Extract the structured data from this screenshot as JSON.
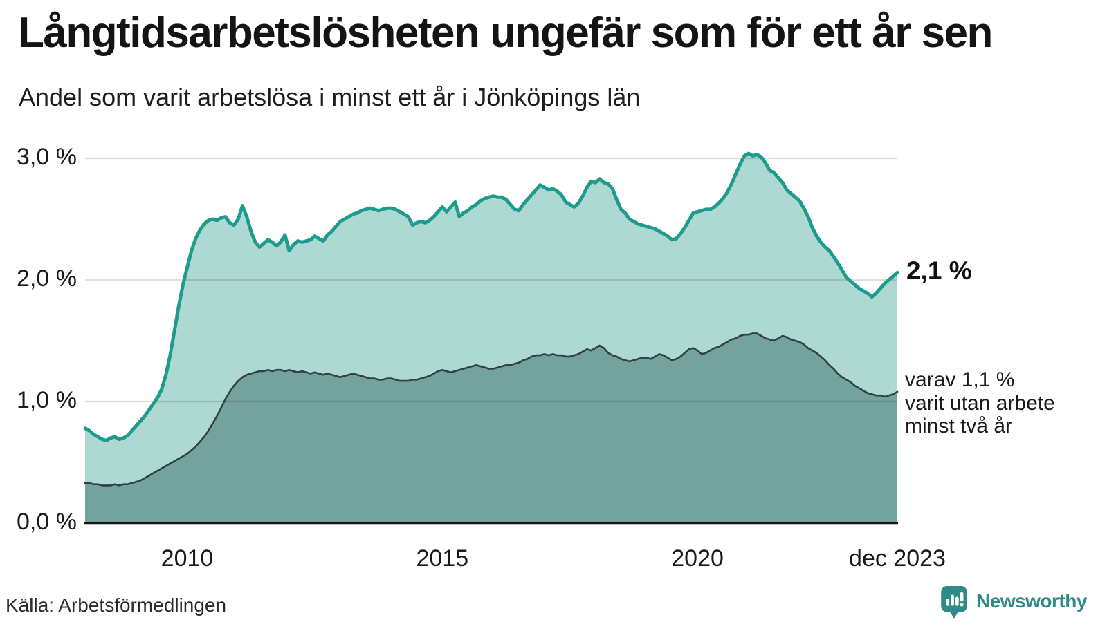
{
  "header": {
    "title": "Långtidsarbetslösheten ungefär som för ett år sen",
    "subtitle": "Andel som varit arbetslösa i minst ett år i Jönköpings län"
  },
  "chart_data": {
    "type": "area",
    "title": "Långtidsarbetslösheten ungefär som för ett år sen",
    "subtitle": "Andel som varit arbetslösa i minst ett år i Jönköpings län",
    "x_range": {
      "start_year": 2008,
      "start_month": 1,
      "end_year": 2023,
      "end_month": 12,
      "interval": "monthly"
    },
    "ylim": [
      0,
      3.3
    ],
    "grid": true,
    "grid_color": "rgba(0,0,0,0.12)",
    "axis_color": "#161616",
    "legend_position": "none",
    "end_label": "2,1 %",
    "annotation": [
      "varav 1,1 %",
      "varit utan arbete",
      "minst två år"
    ],
    "y_ticks": [
      {
        "v": 3.0,
        "label": "3,0 %"
      },
      {
        "v": 2.0,
        "label": "2,0 %"
      },
      {
        "v": 1.0,
        "label": "1,0 %"
      },
      {
        "v": 0.0,
        "label": "0,0 %"
      }
    ],
    "x_ticks": [
      {
        "t": 2010.0,
        "label": "2010"
      },
      {
        "t": 2015.0,
        "label": "2015"
      },
      {
        "t": 2020.0,
        "label": "2020"
      },
      {
        "t": 2023.9167,
        "label": "dec 2023"
      }
    ],
    "series": [
      {
        "name": "arbetslösa minst ett år",
        "color": "#1d9b8c",
        "fill": "#aed8d2",
        "end_value": 2.1,
        "values": [
          0.78,
          0.76,
          0.73,
          0.71,
          0.69,
          0.68,
          0.7,
          0.71,
          0.69,
          0.7,
          0.72,
          0.76,
          0.8,
          0.84,
          0.88,
          0.93,
          0.98,
          1.03,
          1.1,
          1.22,
          1.38,
          1.58,
          1.78,
          1.96,
          2.1,
          2.24,
          2.34,
          2.41,
          2.46,
          2.49,
          2.5,
          2.49,
          2.51,
          2.52,
          2.47,
          2.45,
          2.5,
          2.61,
          2.52,
          2.4,
          2.31,
          2.27,
          2.3,
          2.33,
          2.31,
          2.28,
          2.31,
          2.37,
          2.24,
          2.29,
          2.32,
          2.31,
          2.32,
          2.33,
          2.36,
          2.34,
          2.32,
          2.37,
          2.4,
          2.44,
          2.48,
          2.5,
          2.52,
          2.54,
          2.55,
          2.57,
          2.58,
          2.59,
          2.58,
          2.57,
          2.58,
          2.59,
          2.59,
          2.58,
          2.56,
          2.54,
          2.52,
          2.45,
          2.47,
          2.48,
          2.47,
          2.49,
          2.52,
          2.56,
          2.6,
          2.56,
          2.6,
          2.64,
          2.52,
          2.55,
          2.57,
          2.6,
          2.62,
          2.65,
          2.67,
          2.68,
          2.69,
          2.68,
          2.68,
          2.66,
          2.62,
          2.58,
          2.57,
          2.62,
          2.66,
          2.7,
          2.74,
          2.78,
          2.76,
          2.74,
          2.75,
          2.73,
          2.7,
          2.64,
          2.62,
          2.6,
          2.63,
          2.69,
          2.76,
          2.81,
          2.8,
          2.83,
          2.8,
          2.79,
          2.75,
          2.66,
          2.58,
          2.55,
          2.5,
          2.48,
          2.46,
          2.45,
          2.44,
          2.43,
          2.42,
          2.4,
          2.38,
          2.36,
          2.33,
          2.34,
          2.38,
          2.43,
          2.49,
          2.55,
          2.56,
          2.57,
          2.58,
          2.58,
          2.6,
          2.63,
          2.67,
          2.72,
          2.79,
          2.87,
          2.95,
          3.02,
          3.04,
          3.02,
          3.03,
          3.01,
          2.96,
          2.9,
          2.88,
          2.84,
          2.8,
          2.74,
          2.71,
          2.68,
          2.65,
          2.59,
          2.52,
          2.43,
          2.36,
          2.31,
          2.27,
          2.24,
          2.19,
          2.14,
          2.08,
          2.02,
          1.99,
          1.96,
          1.93,
          1.91,
          1.89,
          1.86,
          1.89,
          1.93,
          1.97,
          2.0,
          2.03,
          2.06
        ]
      },
      {
        "name": "varav utan arbete minst två år",
        "color": "#2e423e",
        "fill": "#73a39c",
        "end_value": 1.1,
        "values": [
          0.33,
          0.33,
          0.32,
          0.32,
          0.31,
          0.31,
          0.31,
          0.32,
          0.31,
          0.32,
          0.32,
          0.33,
          0.34,
          0.35,
          0.37,
          0.39,
          0.41,
          0.43,
          0.45,
          0.47,
          0.49,
          0.51,
          0.53,
          0.55,
          0.57,
          0.6,
          0.63,
          0.67,
          0.71,
          0.76,
          0.82,
          0.88,
          0.95,
          1.02,
          1.08,
          1.13,
          1.17,
          1.2,
          1.22,
          1.23,
          1.24,
          1.25,
          1.25,
          1.26,
          1.25,
          1.26,
          1.26,
          1.25,
          1.26,
          1.25,
          1.24,
          1.25,
          1.24,
          1.23,
          1.24,
          1.23,
          1.22,
          1.23,
          1.22,
          1.21,
          1.2,
          1.21,
          1.22,
          1.23,
          1.22,
          1.21,
          1.2,
          1.19,
          1.19,
          1.18,
          1.18,
          1.19,
          1.19,
          1.18,
          1.17,
          1.17,
          1.17,
          1.18,
          1.18,
          1.19,
          1.2,
          1.21,
          1.23,
          1.25,
          1.26,
          1.25,
          1.24,
          1.25,
          1.26,
          1.27,
          1.28,
          1.29,
          1.3,
          1.29,
          1.28,
          1.27,
          1.27,
          1.28,
          1.29,
          1.3,
          1.3,
          1.31,
          1.32,
          1.34,
          1.35,
          1.37,
          1.38,
          1.38,
          1.39,
          1.38,
          1.39,
          1.38,
          1.38,
          1.37,
          1.37,
          1.38,
          1.39,
          1.41,
          1.43,
          1.42,
          1.44,
          1.46,
          1.44,
          1.4,
          1.38,
          1.37,
          1.35,
          1.34,
          1.33,
          1.34,
          1.35,
          1.36,
          1.36,
          1.35,
          1.37,
          1.39,
          1.38,
          1.36,
          1.34,
          1.35,
          1.37,
          1.4,
          1.43,
          1.44,
          1.42,
          1.39,
          1.4,
          1.42,
          1.44,
          1.45,
          1.47,
          1.49,
          1.51,
          1.52,
          1.54,
          1.55,
          1.55,
          1.56,
          1.56,
          1.54,
          1.52,
          1.51,
          1.5,
          1.52,
          1.54,
          1.53,
          1.51,
          1.5,
          1.49,
          1.47,
          1.44,
          1.42,
          1.4,
          1.37,
          1.34,
          1.3,
          1.27,
          1.23,
          1.2,
          1.18,
          1.16,
          1.13,
          1.11,
          1.09,
          1.07,
          1.06,
          1.05,
          1.05,
          1.04,
          1.05,
          1.06,
          1.08
        ]
      }
    ]
  },
  "source": {
    "text": "Källa: Arbetsförmedlingen"
  },
  "logo": {
    "text": "Newsworthy",
    "color": "#2e8b87",
    "icon": "newsworthy-bubble-barchart-icon"
  }
}
